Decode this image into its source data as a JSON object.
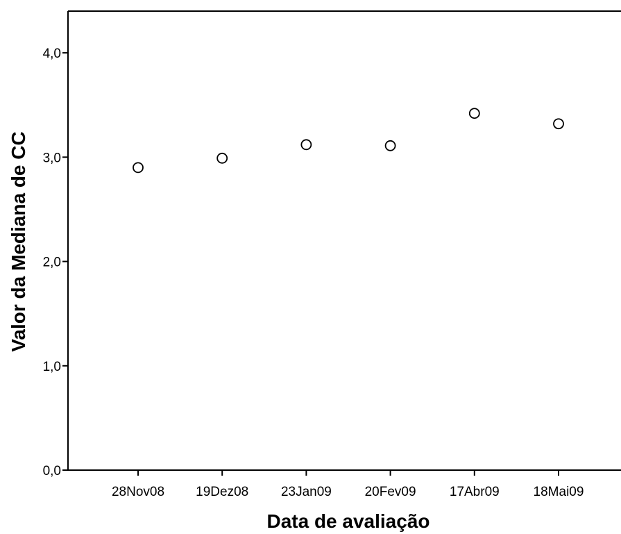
{
  "chart_data": {
    "type": "scatter",
    "title": "",
    "xlabel": "Data de avaliação",
    "ylabel": "Valor da Mediana de CC",
    "categories": [
      "28Nov08",
      "19Dez08",
      "23Jan09",
      "20Fev09",
      "17Abr09",
      "18Mai09"
    ],
    "values": [
      2.9,
      2.99,
      3.12,
      3.11,
      3.42,
      3.32
    ],
    "ylim": [
      0,
      4.4
    ],
    "yticks": [
      0,
      1,
      2,
      3,
      4
    ],
    "ytick_labels": [
      "0,0",
      "1,0",
      "2,0",
      "3,0",
      "4,0"
    ],
    "grid": false,
    "legend": "none",
    "marker": "open-circle",
    "colors": {
      "marker_stroke": "#000000",
      "marker_fill": "#ffffff",
      "axis": "#000000"
    }
  }
}
